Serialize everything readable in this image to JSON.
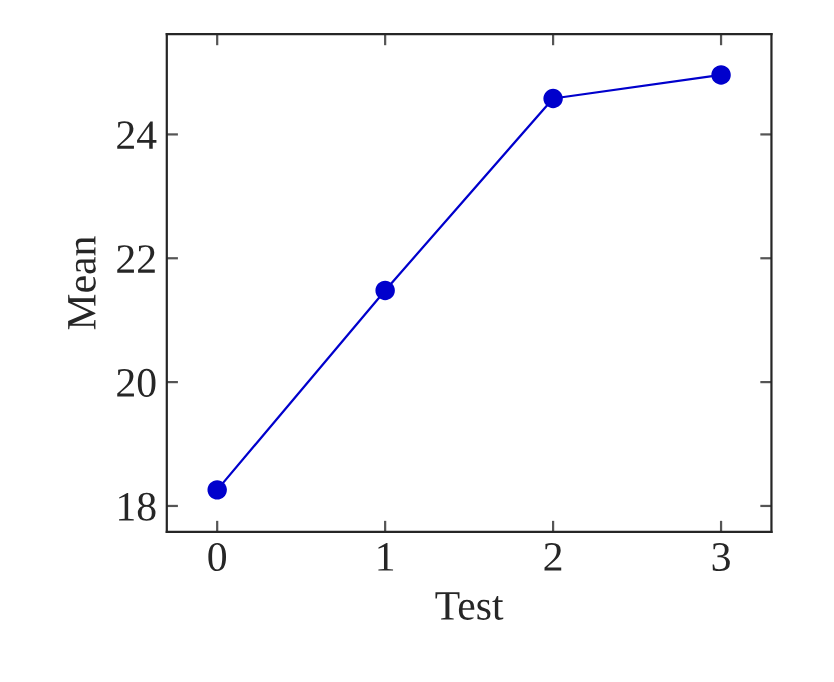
{
  "chart_data": {
    "type": "line",
    "xlabel": "Test",
    "ylabel": "Mean",
    "x": [
      0,
      1,
      2,
      3
    ],
    "series": [
      {
        "color": "#0000cc",
        "values": [
          18.26,
          21.48,
          24.58,
          24.96
        ]
      }
    ],
    "xlim": [
      -0.3,
      3.3
    ],
    "ylim": [
      17.58,
      25.62
    ],
    "xticks": [
      0,
      1,
      2,
      3
    ],
    "yticks": [
      18,
      20,
      22,
      24
    ],
    "marker": "circle",
    "line_style": "solid",
    "grid": false,
    "legend": false
  }
}
